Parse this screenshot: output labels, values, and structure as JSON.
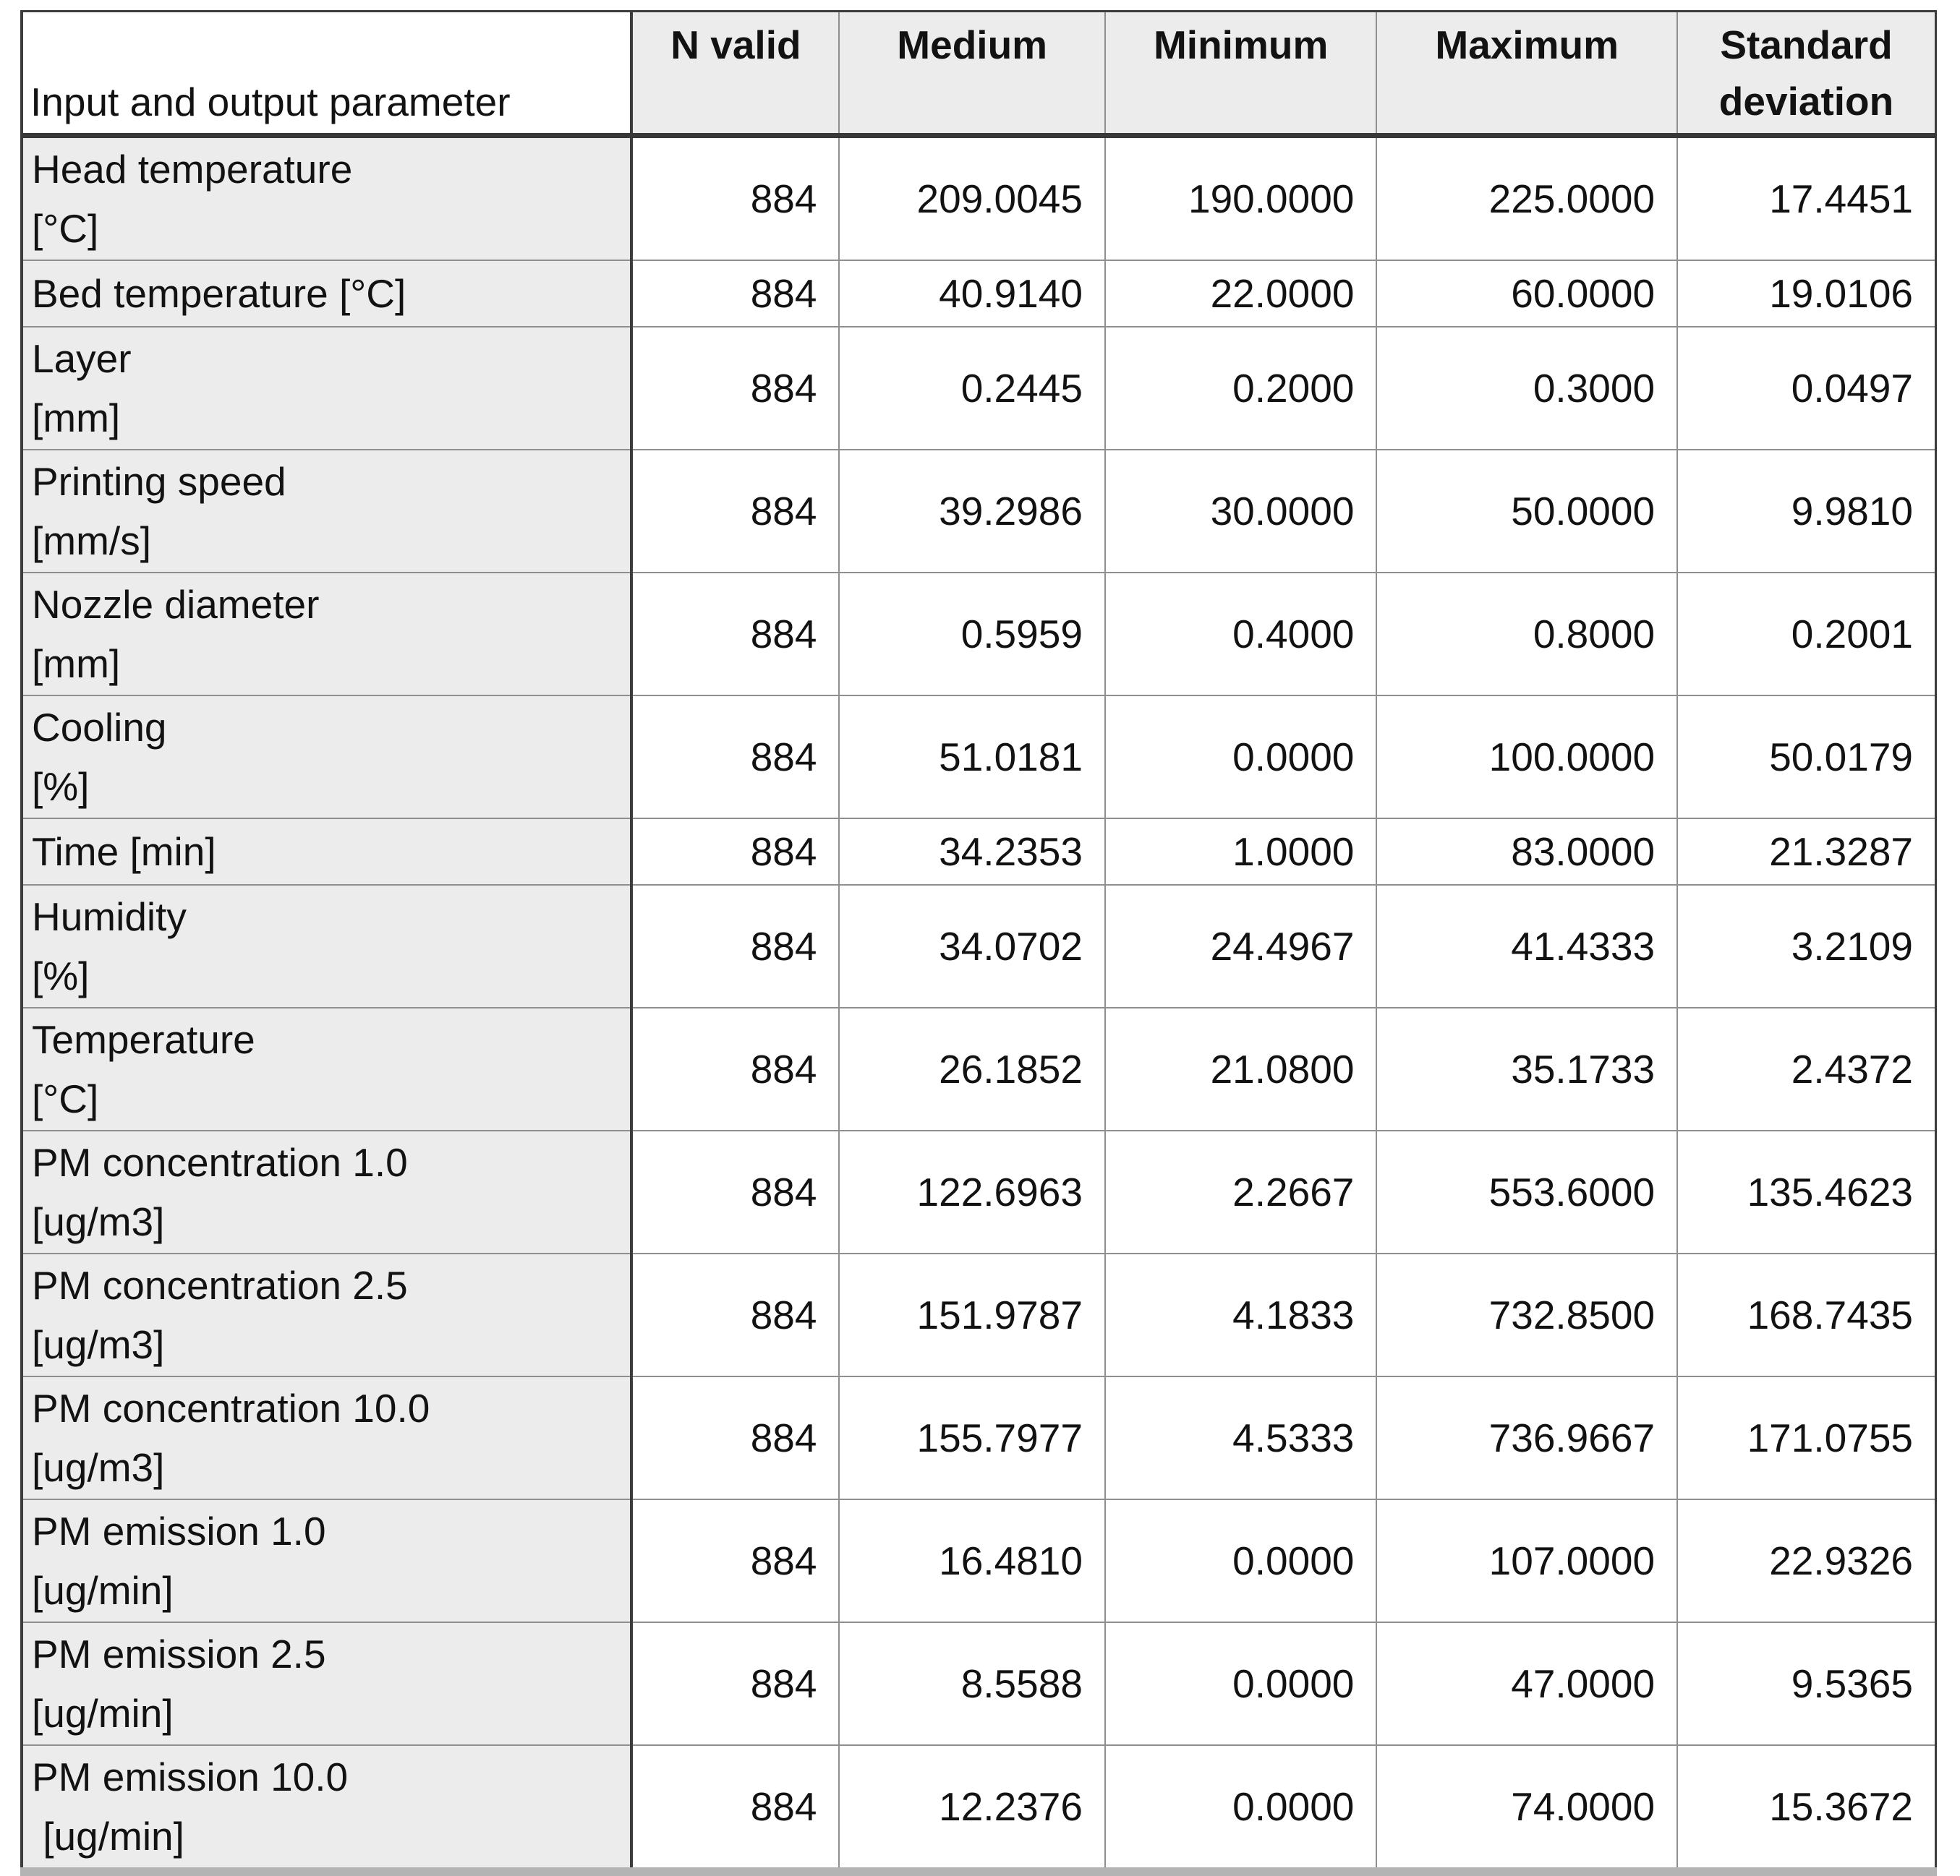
{
  "table": {
    "corner_header": "Input and output parameter",
    "column_headers": [
      "N valid",
      "Medium",
      "Minimum",
      "Maximum",
      "Standard deviation"
    ],
    "rows": [
      {
        "label_line1": "Head temperature",
        "label_line2": "[°C]",
        "n_valid": "884",
        "medium": "209.0045",
        "minimum": "190.0000",
        "maximum": "225.0000",
        "std_dev": "17.4451"
      },
      {
        "label_line1": "Bed temperature [°C]",
        "n_valid": "884",
        "medium": "40.9140",
        "minimum": "22.0000",
        "maximum": "60.0000",
        "std_dev": "19.0106"
      },
      {
        "label_line1": "Layer",
        "label_line2": "[mm]",
        "n_valid": "884",
        "medium": "0.2445",
        "minimum": "0.2000",
        "maximum": "0.3000",
        "std_dev": "0.0497"
      },
      {
        "label_line1": "Printing speed",
        "label_line2": "[mm/s]",
        "n_valid": "884",
        "medium": "39.2986",
        "minimum": "30.0000",
        "maximum": "50.0000",
        "std_dev": "9.9810"
      },
      {
        "label_line1": "Nozzle diameter",
        "label_line2": "[mm]",
        "n_valid": "884",
        "medium": "0.5959",
        "minimum": "0.4000",
        "maximum": "0.8000",
        "std_dev": "0.2001"
      },
      {
        "label_line1": "Cooling",
        "label_line2": "[%]",
        "n_valid": "884",
        "medium": "51.0181",
        "minimum": "0.0000",
        "maximum": "100.0000",
        "std_dev": "50.0179"
      },
      {
        "label_line1": "Time [min]",
        "n_valid": "884",
        "medium": "34.2353",
        "minimum": "1.0000",
        "maximum": "83.0000",
        "std_dev": "21.3287"
      },
      {
        "label_line1": "Humidity",
        "label_line2": "[%]",
        "n_valid": "884",
        "medium": "34.0702",
        "minimum": "24.4967",
        "maximum": "41.4333",
        "std_dev": "3.2109"
      },
      {
        "label_line1": "Temperature",
        "label_line2": "[°C]",
        "n_valid": "884",
        "medium": "26.1852",
        "minimum": "21.0800",
        "maximum": "35.1733",
        "std_dev": "2.4372"
      },
      {
        "label_line1": "PM concentration 1.0",
        "label_line2": "[ug/m3]",
        "n_valid": "884",
        "medium": "122.6963",
        "minimum": "2.2667",
        "maximum": "553.6000",
        "std_dev": "135.4623"
      },
      {
        "label_line1": "PM concentration 2.5",
        "label_line2": "[ug/m3]",
        "n_valid": "884",
        "medium": "151.9787",
        "minimum": "4.1833",
        "maximum": "732.8500",
        "std_dev": "168.7435"
      },
      {
        "label_line1": "PM concentration 10.0",
        "label_line2": "[ug/m3]",
        "n_valid": "884",
        "medium": "155.7977",
        "minimum": "4.5333",
        "maximum": "736.9667",
        "std_dev": "171.0755"
      },
      {
        "label_line1": "PM emission 1.0",
        "label_line2": "[ug/min]",
        "n_valid": "884",
        "medium": "16.4810",
        "minimum": "0.0000",
        "maximum": "107.0000",
        "std_dev": "22.9326"
      },
      {
        "label_line1": "PM emission 2.5",
        "label_line2": "[ug/min]",
        "n_valid": "884",
        "medium": "8.5588",
        "minimum": "0.0000",
        "maximum": "47.0000",
        "std_dev": "9.5365"
      },
      {
        "label_line1": "PM emission 10.0",
        "label_line2": " [ug/min]",
        "n_valid": "884",
        "medium": "12.2376",
        "minimum": "0.0000",
        "maximum": "74.0000",
        "std_dev": "15.3672"
      }
    ]
  },
  "colors": {
    "header_bg": "#ececec",
    "param_col_bg": "#ececec",
    "grid_line": "#8f8f8f",
    "outer_border": "#3c3c3c",
    "bottom_band": "#b4b4b4",
    "text": "#121212"
  }
}
